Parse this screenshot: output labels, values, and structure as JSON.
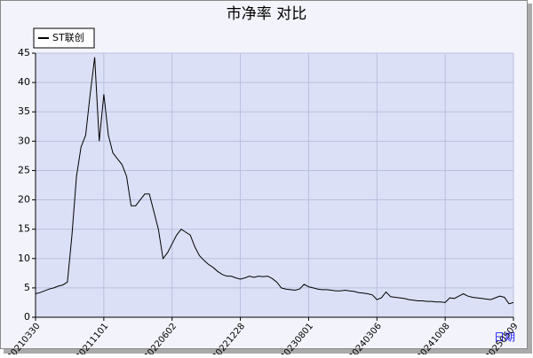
{
  "chart_data": {
    "type": "line",
    "title": "市净率 对比",
    "x_label": "日期",
    "categories": [
      "20210330",
      null,
      null,
      null,
      null,
      null,
      null,
      null,
      null,
      null,
      null,
      null,
      null,
      null,
      null,
      "20211101",
      null,
      null,
      null,
      null,
      null,
      null,
      null,
      null,
      null,
      null,
      null,
      null,
      null,
      null,
      "20220602",
      null,
      null,
      null,
      null,
      null,
      null,
      null,
      null,
      null,
      null,
      null,
      null,
      null,
      null,
      "20221228",
      null,
      null,
      null,
      null,
      null,
      null,
      null,
      null,
      null,
      null,
      null,
      null,
      null,
      null,
      "20230801",
      null,
      null,
      null,
      null,
      null,
      null,
      null,
      null,
      null,
      null,
      null,
      null,
      null,
      null,
      "20240306",
      null,
      null,
      null,
      null,
      null,
      null,
      null,
      null,
      null,
      null,
      null,
      null,
      null,
      null,
      "20241008",
      null,
      null,
      null,
      null,
      null,
      null,
      null,
      null,
      null,
      null,
      null,
      null,
      null,
      null,
      "20250509"
    ],
    "series": [
      {
        "name": "ST联创",
        "color": "#000000",
        "values": [
          4,
          4.2,
          4.5,
          4.8,
          5,
          5.3,
          5.5,
          6,
          14,
          24,
          29,
          31,
          38,
          44.3,
          30,
          38,
          31,
          28,
          27,
          26,
          24,
          19,
          19,
          20,
          21,
          21,
          18,
          15,
          10,
          11,
          12.5,
          14,
          15,
          14.5,
          14,
          12,
          10.5,
          9.7,
          9,
          8.5,
          7.8,
          7.3,
          7,
          7,
          6.7,
          6.5,
          6.7,
          7,
          6.8,
          7,
          6.9,
          7,
          6.6,
          6,
          5,
          4.8,
          4.7,
          4.6,
          4.8,
          5.6,
          5.2,
          5,
          4.8,
          4.7,
          4.7,
          4.6,
          4.5,
          4.5,
          4.6,
          4.5,
          4.4,
          4.2,
          4.1,
          4,
          3.8,
          3,
          3.3,
          4.3,
          3.5,
          3.4,
          3.3,
          3.2,
          3,
          2.9,
          2.8,
          2.8,
          2.7,
          2.7,
          2.6,
          2.6,
          2.5,
          3.3,
          3.2,
          3.6,
          4,
          3.6,
          3.4,
          3.3,
          3.2,
          3.1,
          3,
          3.3,
          3.6,
          3.4,
          2.3,
          2.5
        ]
      }
    ],
    "ylim": [
      0,
      45
    ],
    "yticks": [
      0,
      5,
      10,
      15,
      20,
      25,
      30,
      35,
      40,
      45
    ],
    "grid": true,
    "legend": "top-left"
  }
}
